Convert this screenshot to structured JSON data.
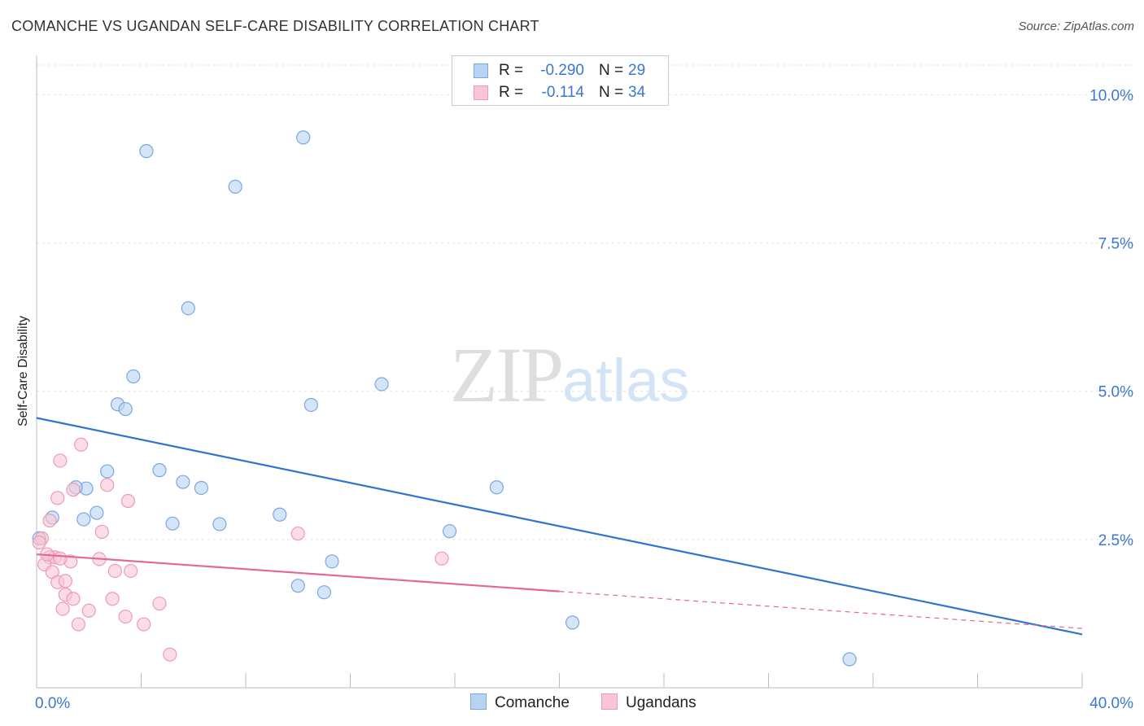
{
  "header": {
    "title": "COMANCHE VS UGANDAN SELF-CARE DISABILITY CORRELATION CHART",
    "source": "Source: ZipAtlas.com"
  },
  "watermark": {
    "zip": "ZIP",
    "atlas": "atlas"
  },
  "stats": [
    {
      "r_label": "R =",
      "r_value": "-0.290",
      "n_label": "N =",
      "n_value": "29",
      "fill": "#b9d3f3",
      "stroke": "#7aa7e0"
    },
    {
      "r_label": "R =",
      "r_value": "-0.114",
      "n_label": "N =",
      "n_value": "34",
      "fill": "#f9c6d6",
      "stroke": "#ef9ab4"
    }
  ],
  "legend": [
    {
      "label": "Comanche",
      "fill": "#b9d3f3",
      "stroke": "#7aa7e0"
    },
    {
      "label": "Ugandans",
      "fill": "#f9c6d6",
      "stroke": "#ef9ab4"
    }
  ],
  "chart_data": {
    "type": "scatter",
    "title": "COMANCHE VS UGANDAN SELF-CARE DISABILITY CORRELATION CHART",
    "xlabel": "",
    "ylabel": "Self-Care Disability",
    "xlim": [
      0,
      40
    ],
    "ylim": [
      0,
      10.5
    ],
    "x_tick_labels": [
      {
        "value": 0,
        "label": "0.0%"
      },
      {
        "value": 40,
        "label": "40.0%"
      }
    ],
    "y_tick_labels": [
      {
        "value": 2.5,
        "label": "2.5%"
      },
      {
        "value": 5,
        "label": "5.0%"
      },
      {
        "value": 7.5,
        "label": "7.5%"
      },
      {
        "value": 10,
        "label": "10.0%"
      }
    ],
    "grid": true,
    "series": [
      {
        "name": "Comanche",
        "color": "#b9d3f3",
        "stroke": "#7aa7e0",
        "trend_color": "#2f74d0",
        "trend": {
          "x0": 0,
          "y0": 4.55,
          "x1": 40,
          "y1": 0.9,
          "solid_to": 40
        },
        "points": [
          [
            4.2,
            9.05
          ],
          [
            10.2,
            9.28
          ],
          [
            7.6,
            8.45
          ],
          [
            5.8,
            6.4
          ],
          [
            3.7,
            5.25
          ],
          [
            13.2,
            5.12
          ],
          [
            3.1,
            4.78
          ],
          [
            3.4,
            4.7
          ],
          [
            10.5,
            4.77
          ],
          [
            2.7,
            3.65
          ],
          [
            4.7,
            3.67
          ],
          [
            5.6,
            3.47
          ],
          [
            6.3,
            3.37
          ],
          [
            17.6,
            3.38
          ],
          [
            1.9,
            3.36
          ],
          [
            1.5,
            3.38
          ],
          [
            2.3,
            2.95
          ],
          [
            1.8,
            2.84
          ],
          [
            0.6,
            2.87
          ],
          [
            5.2,
            2.77
          ],
          [
            7.0,
            2.76
          ],
          [
            9.3,
            2.92
          ],
          [
            15.8,
            2.64
          ],
          [
            11.3,
            2.13
          ],
          [
            10.0,
            1.72
          ],
          [
            11.0,
            1.61
          ],
          [
            20.5,
            1.1
          ],
          [
            31.1,
            0.48
          ],
          [
            0.1,
            2.52
          ]
        ]
      },
      {
        "name": "Ugandans",
        "color": "#f9c6d6",
        "stroke": "#ef9ab4",
        "trend_color": "#e2689a",
        "trend": {
          "x0": 0,
          "y0": 2.25,
          "x1": 40,
          "y1": 1.0,
          "solid_to": 20
        },
        "points": [
          [
            1.7,
            4.1
          ],
          [
            0.9,
            3.83
          ],
          [
            2.7,
            3.42
          ],
          [
            1.4,
            3.34
          ],
          [
            3.5,
            3.15
          ],
          [
            0.8,
            3.2
          ],
          [
            0.5,
            2.82
          ],
          [
            2.5,
            2.63
          ],
          [
            10.0,
            2.6
          ],
          [
            0.2,
            2.52
          ],
          [
            0.1,
            2.45
          ],
          [
            0.5,
            2.2
          ],
          [
            0.7,
            2.2
          ],
          [
            2.4,
            2.17
          ],
          [
            1.3,
            2.13
          ],
          [
            0.3,
            2.08
          ],
          [
            0.6,
            1.95
          ],
          [
            3.0,
            1.97
          ],
          [
            3.6,
            1.97
          ],
          [
            15.5,
            2.18
          ],
          [
            0.8,
            1.78
          ],
          [
            1.1,
            1.8
          ],
          [
            1.1,
            1.57
          ],
          [
            1.4,
            1.5
          ],
          [
            2.9,
            1.5
          ],
          [
            4.7,
            1.42
          ],
          [
            1.0,
            1.33
          ],
          [
            2.0,
            1.3
          ],
          [
            3.4,
            1.2
          ],
          [
            1.6,
            1.07
          ],
          [
            4.1,
            1.07
          ],
          [
            5.1,
            0.56
          ],
          [
            0.4,
            2.25
          ],
          [
            0.9,
            2.18
          ]
        ]
      }
    ]
  }
}
